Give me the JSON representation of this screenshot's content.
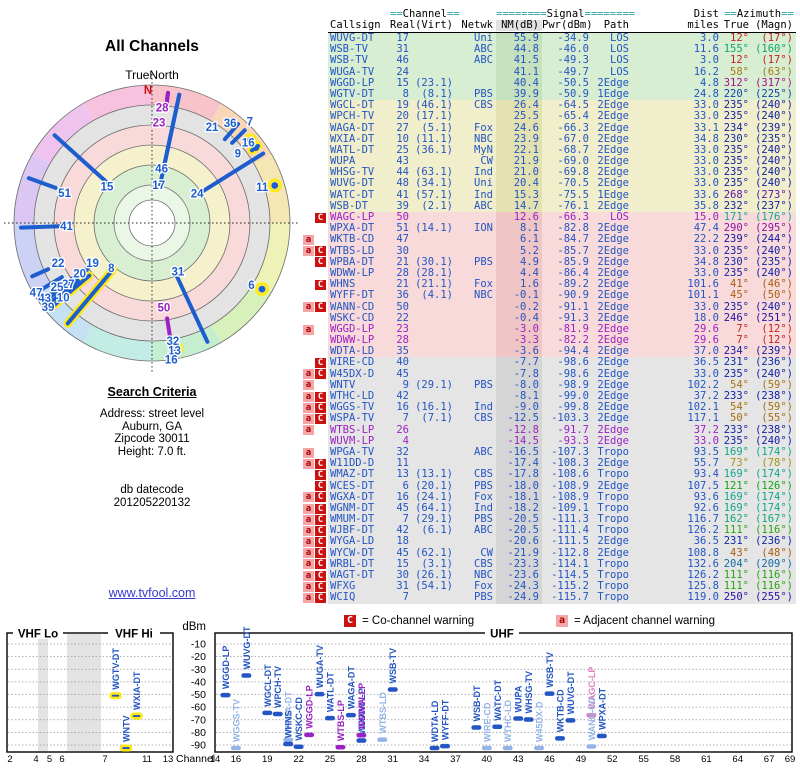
{
  "radar": {
    "title": "All Channels",
    "north_label": "TrueNorth",
    "n_marker": "N"
  },
  "search": {
    "heading": "Search Criteria",
    "lines": [
      "Address: street level",
      "Auburn, GA",
      "Zipcode 30011",
      "Height: 7.0 ft."
    ],
    "db": [
      "db datecode",
      "201205220132"
    ]
  },
  "link": {
    "text": "www.tvfool.com"
  },
  "legend": {
    "c": "C",
    "c_text": "= Co-channel warning",
    "a": "a",
    "a_text": "= Adjacent channel warning"
  },
  "table_header": {
    "eq2": "==",
    "channel": "Channel",
    "eq8": "========",
    "signal": "Signal",
    "dist": "Dist",
    "azimuth": "Azimuth",
    "cols": [
      "Callsign",
      "Real",
      "(Virt)",
      "Netwk",
      "NM(dB)",
      "Pwr(dBm)",
      "Path",
      "miles",
      "True",
      "(Magn)"
    ]
  },
  "spectrum": {
    "dbm": "dBm",
    "channel": "Channel",
    "vhf_lo": "VHF Lo",
    "vhf_hi": "VHF Hi",
    "uhf": "UHF",
    "yticks": [
      -10,
      -20,
      -30,
      -40,
      -50,
      -60,
      -70,
      -80,
      -90
    ],
    "vhf_ticks": [
      2,
      4,
      5,
      6,
      7,
      11,
      13
    ],
    "uhf_ticks": [
      14,
      16,
      19,
      22,
      25,
      28,
      31,
      34,
      37,
      40,
      43,
      46,
      49,
      52,
      55,
      58,
      61,
      64,
      67,
      69
    ]
  },
  "colors": {
    "blue": "#2355c4",
    "light_blue": "#94b4e8",
    "purple": "#9a22c4",
    "pink": "#e07ec0",
    "spoke_blue": "#1d5ecf",
    "vhf_yellow": "#ffe912",
    "co_red": "#cc1111",
    "adj_pink": "#f5a5a5"
  },
  "chart_data": {
    "type": "table",
    "title": "All Channels",
    "row_fields": [
      "callsign",
      "real",
      "virt",
      "netwk",
      "nm_db",
      "pwr_dbm",
      "path",
      "miles",
      "az_true",
      "az_magn",
      "band",
      "warn",
      "purple",
      "radar_label(r,az)",
      "spectrum(band,color,yellow)"
    ],
    "rows": [
      [
        "WUVG-DT",
        17,
        "",
        "Uni",
        "55.9",
        "-34.9",
        "LOS",
        "3.0",
        12,
        17,
        "g",
        "",
        0,
        [
          0.28,
          10
        ],
        [
          "u",
          "d",
          0
        ]
      ],
      [
        "WSB-TV",
        31,
        "",
        "ABC",
        "44.8",
        "-46.0",
        "LOS",
        "11.6",
        155,
        160,
        "g",
        "",
        0,
        [
          0.4,
          152
        ],
        [
          "u",
          "d",
          0
        ]
      ],
      [
        "WSB-TV",
        46,
        "",
        "ABC",
        "41.5",
        "-49.3",
        "LOS",
        "3.0",
        12,
        17,
        "g",
        "",
        0,
        [
          0.4,
          10
        ],
        [
          "u",
          "d",
          0
        ]
      ],
      [
        "WUGA-TV",
        24,
        "",
        "",
        "41.1",
        "-49.7",
        "LOS",
        "16.2",
        58,
        63,
        "g",
        "",
        0,
        [
          0.39,
          57
        ],
        [
          "u",
          "d",
          0
        ]
      ],
      [
        "WGGD-LP",
        15,
        "(23.1)",
        "",
        "40.4",
        "-50.5",
        "2Edge",
        "4.8",
        312,
        317,
        "g",
        "",
        0,
        [
          0.42,
          309
        ],
        [
          "u",
          "d",
          0
        ]
      ],
      [
        "WGTV-DT",
        8,
        "(8.1)",
        "PBS",
        "39.9",
        "-50.9",
        "1Edge",
        "24.8",
        220,
        225,
        "g",
        "",
        0,
        [
          0.44,
          222
        ],
        [
          "v",
          "d",
          1
        ]
      ],
      [
        "WGCL-DT",
        19,
        "(46.1)",
        "CBS",
        "26.4",
        "-64.5",
        "2Edge",
        "33.0",
        235,
        240,
        "y",
        "",
        0,
        [
          0.52,
          236
        ],
        [
          "u",
          "d",
          0
        ]
      ],
      [
        "WPCH-TV",
        20,
        "(17.1)",
        "",
        "25.5",
        "-65.4",
        "2Edge",
        "33.0",
        235,
        240,
        "y",
        "",
        0,
        [
          0.64,
          235
        ],
        [
          "u",
          "d",
          0
        ]
      ],
      [
        "WAGA-DT",
        27,
        "(5.1)",
        "Fox",
        "24.6",
        "-66.3",
        "2Edge",
        "33.1",
        234,
        239,
        "y",
        "",
        0,
        [
          0.75,
          234
        ],
        [
          "u",
          "d",
          0
        ]
      ],
      [
        "WXIA-DT",
        10,
        "(11.1)",
        "NBC",
        "23.9",
        "-67.0",
        "2Edge",
        "34.8",
        230,
        235,
        "y",
        "",
        0,
        [
          0.84,
          230
        ],
        [
          "v",
          "d",
          1
        ]
      ],
      [
        "WATL-DT",
        25,
        "(36.1)",
        "MyN",
        "22.1",
        "-68.7",
        "2Edge",
        "33.0",
        235,
        240,
        "y",
        "",
        0,
        [
          0.83,
          236
        ],
        [
          "u",
          "d",
          0
        ]
      ],
      [
        "WUPA",
        43,
        "",
        "CW",
        "21.9",
        "-69.0",
        "2Edge",
        "33.0",
        235,
        240,
        "y",
        "",
        0,
        [
          0.95,
          235
        ],
        [
          "u",
          "d",
          0
        ]
      ],
      [
        "WHSG-TV",
        44,
        "(63.1)",
        "Ind",
        "21.0",
        "-69.8",
        "2Edge",
        "33.0",
        235,
        240,
        "y",
        "",
        0,
        0,
        [
          "u",
          "d",
          0
        ]
      ],
      [
        "WUVG-DT",
        48,
        "(34.1)",
        "Uni",
        "20.4",
        "-70.5",
        "2Edge",
        "33.0",
        235,
        240,
        "y",
        "",
        0,
        0,
        [
          "u",
          "d",
          0
        ]
      ],
      [
        "WATC-DT",
        41,
        "(57.1)",
        "Ind",
        "15.3",
        "-75.5",
        "1Edge",
        "33.6",
        268,
        273,
        "y",
        "",
        0,
        [
          0.62,
          268
        ],
        [
          "u",
          "d",
          0
        ]
      ],
      [
        "WSB-DT",
        39,
        "(2.1)",
        "ABC",
        "14.7",
        "-76.1",
        "2Edge",
        "35.8",
        232,
        237,
        "y",
        "",
        0,
        [
          0.97,
          231
        ],
        [
          "u",
          "d",
          0
        ]
      ],
      [
        "WAGC-LP",
        50,
        "",
        "",
        "12.6",
        "-66.3",
        "LOS",
        "15.0",
        171,
        176,
        "p",
        "C",
        1,
        [
          0.62,
          172
        ],
        [
          "u",
          "pk",
          0
        ]
      ],
      [
        "WPXA-DT",
        51,
        "(14.1)",
        "ION",
        "8.1",
        "-82.8",
        "2Edge",
        "47.4",
        290,
        295,
        "p",
        "",
        0,
        [
          0.67,
          289
        ],
        [
          "u",
          "d",
          0
        ]
      ],
      [
        "WKTB-CD",
        47,
        "",
        "",
        "6.1",
        "-84.7",
        "2Edge",
        "22.2",
        239,
        244,
        "p",
        "a",
        0,
        [
          0.98,
          239
        ],
        [
          "u",
          "d",
          0
        ]
      ],
      [
        "WTBS-LD",
        30,
        "",
        "",
        "5.2",
        "-85.7",
        "2Edge",
        "33.0",
        235,
        240,
        "p",
        "aC",
        0,
        0,
        [
          "u",
          "l",
          0
        ]
      ],
      [
        "WPBA-DT",
        21,
        "(30.1)",
        "PBS",
        "4.9",
        "-85.9",
        "2Edge",
        "34.8",
        230,
        235,
        "p",
        "C",
        0,
        0,
        [
          "u",
          "l",
          0
        ]
      ],
      [
        "WDWW-LP",
        28,
        "(28.1)",
        "",
        "4.4",
        "-86.4",
        "2Edge",
        "33.0",
        235,
        240,
        "p",
        "",
        0,
        0,
        [
          "u",
          "d",
          0
        ]
      ],
      [
        "WHNS",
        21,
        "(21.1)",
        "Fox",
        "1.6",
        "-89.2",
        "2Edge",
        "101.6",
        41,
        46,
        "p",
        "C",
        0,
        [
          0.82,
          32
        ],
        [
          "u",
          "d",
          0
        ]
      ],
      [
        "WYFF-DT",
        36,
        "(4.1)",
        "NBC",
        "-0.1",
        "-90.9",
        "2Edge",
        "101.1",
        45,
        50,
        "p",
        "",
        0,
        [
          0.92,
          38
        ],
        [
          "u",
          "d",
          0
        ]
      ],
      [
        "WANN-CD",
        50,
        "",
        "",
        "-0.2",
        "-91.1",
        "2Edge",
        "33.0",
        235,
        240,
        "p",
        "aC",
        0,
        0,
        [
          "u",
          "l",
          0
        ]
      ],
      [
        "WSKC-CD",
        22,
        "",
        "",
        "-0.4",
        "-91.3",
        "2Edge",
        "18.0",
        246,
        251,
        "p",
        "",
        0,
        [
          0.74,
          247
        ],
        [
          "u",
          "d",
          0
        ]
      ],
      [
        "WGGD-LP",
        23,
        "",
        "",
        "-3.0",
        "-81.9",
        "2Edge",
        "29.6",
        7,
        12,
        "p",
        "a",
        1,
        [
          0.73,
          4
        ],
        [
          "u",
          "pu",
          0
        ]
      ],
      [
        "WDWW-LP",
        28,
        "",
        "",
        "-3.3",
        "-82.2",
        "2Edge",
        "29.6",
        7,
        12,
        "p",
        "",
        1,
        [
          0.84,
          5
        ],
        [
          "u",
          "pu",
          0
        ]
      ],
      [
        "WDTA-LD",
        35,
        "",
        "",
        "-3.6",
        "-94.4",
        "2Edge",
        "37.0",
        234,
        239,
        "p",
        "",
        0,
        0,
        [
          "u",
          "d",
          0
        ]
      ],
      [
        "WIRE-CD",
        40,
        "",
        "",
        "-7.7",
        "-98.6",
        "2Edge",
        "36.5",
        231,
        236,
        "gr",
        "C",
        0,
        0,
        [
          "u",
          "l",
          0
        ]
      ],
      [
        "W45DX-D",
        45,
        "",
        "",
        "-7.8",
        "-98.6",
        "2Edge",
        "33.0",
        235,
        240,
        "gr",
        "aC",
        0,
        0,
        [
          "u",
          "l",
          0
        ]
      ],
      [
        "WNTV",
        9,
        "(29.1)",
        "PBS",
        "-8.0",
        "-98.9",
        "2Edge",
        "102.2",
        54,
        59,
        "gr",
        "a",
        0,
        [
          0.8,
          51
        ],
        [
          "v",
          "d",
          1
        ]
      ],
      [
        "WTHC-LD",
        42,
        "",
        "",
        "-8.1",
        "-99.0",
        "2Edge",
        "37.2",
        233,
        238,
        "gr",
        "aC",
        0,
        0,
        [
          "u",
          "l",
          0
        ]
      ],
      [
        "WGGS-TV",
        16,
        "(16.1)",
        "Ind",
        "-9.0",
        "-99.8",
        "2Edge",
        "102.1",
        54,
        59,
        "gr",
        "aC",
        0,
        [
          0.91,
          50
        ],
        [
          "u",
          "l",
          0
        ]
      ],
      [
        "WSPA-TV",
        7,
        "(7.1)",
        "CBS",
        "-12.5",
        "-103.3",
        "2Edge",
        "117.1",
        50,
        55,
        "gr",
        "aC",
        0,
        [
          1.02,
          44
        ],
        0
      ],
      [
        "WTBS-LP",
        26,
        "",
        "",
        "-12.8",
        "-91.7",
        "2Edge",
        "37.2",
        233,
        238,
        "gr",
        "a",
        1,
        0,
        [
          "u",
          "pu",
          0
        ]
      ],
      [
        "WUVM-LP",
        4,
        "",
        "",
        "-14.5",
        "-93.3",
        "2Edge",
        "33.0",
        235,
        240,
        "gr",
        "",
        1,
        0,
        0
      ],
      [
        "WPGA-TV",
        32,
        "",
        "ABC",
        "-16.5",
        "-107.3",
        "Tropo",
        "93.5",
        169,
        174,
        "gr",
        "a",
        0,
        [
          0.87,
          170
        ],
        0
      ],
      [
        "W11DD-D",
        11,
        "",
        "",
        "-17.4",
        "-108.3",
        "2Edge",
        "55.7",
        73,
        78,
        "gr",
        "aC",
        0,
        [
          0.84,
          72
        ],
        0
      ],
      [
        "WMAZ-DT",
        13,
        "(13.1)",
        "CBS",
        "-17.8",
        "-108.6",
        "Tropo",
        "93.4",
        169,
        174,
        "gr",
        "C",
        0,
        [
          0.94,
          170
        ],
        0
      ],
      [
        "WCES-DT",
        6,
        "(20.1)",
        "PBS",
        "-18.0",
        "-108.9",
        "2Edge",
        "107.5",
        121,
        126,
        "gr",
        "C",
        0,
        [
          0.85,
          122
        ],
        0
      ],
      [
        "WGXA-DT",
        16,
        "(24.1)",
        "Fox",
        "-18.1",
        "-108.9",
        "Tropo",
        "93.6",
        169,
        174,
        "gr",
        "aC",
        0,
        [
          1.0,
          172
        ],
        0
      ],
      [
        "WGNM-DT",
        45,
        "(64.1)",
        "Ind",
        "-18.2",
        "-109.1",
        "Tropo",
        "92.6",
        169,
        174,
        "gr",
        "aC",
        0,
        0,
        0
      ],
      [
        "WMUM-DT",
        7,
        "(29.1)",
        "PBS",
        "-20.5",
        "-111.3",
        "Tropo",
        "116.7",
        162,
        167,
        "gr",
        "aC",
        0,
        0,
        0
      ],
      [
        "WJBF-DT",
        42,
        "(6.1)",
        "ABC",
        "-20.5",
        "-111.4",
        "Tropo",
        "126.2",
        111,
        116,
        "gr",
        "aC",
        0,
        0,
        0
      ],
      [
        "WYGA-LD",
        18,
        "",
        "",
        "-20.6",
        "-111.5",
        "2Edge",
        "36.5",
        231,
        236,
        "gr",
        "aC",
        0,
        0,
        0
      ],
      [
        "WYCW-DT",
        45,
        "(62.1)",
        "CW",
        "-21.9",
        "-112.8",
        "2Edge",
        "108.8",
        43,
        48,
        "gr",
        "aC",
        0,
        0,
        0
      ],
      [
        "WRBL-DT",
        15,
        "(3.1)",
        "CBS",
        "-23.3",
        "-114.1",
        "Tropo",
        "132.6",
        204,
        209,
        "gr",
        "aC",
        0,
        0,
        0
      ],
      [
        "WAGT-DT",
        30,
        "(26.1)",
        "NBC",
        "-23.6",
        "-114.5",
        "Tropo",
        "126.2",
        111,
        116,
        "gr",
        "aC",
        0,
        0,
        0
      ],
      [
        "WFXG",
        31,
        "(54.1)",
        "Fox",
        "-24.3",
        "-115.2",
        "Tropo",
        "125.8",
        111,
        116,
        "gr",
        "aC",
        0,
        0,
        0
      ],
      [
        "WCIQ",
        7,
        "",
        "PBS",
        "-24.9",
        "-115.7",
        "Tropo",
        "119.0",
        250,
        255,
        "gr",
        "aC",
        0,
        0,
        0
      ]
    ]
  }
}
